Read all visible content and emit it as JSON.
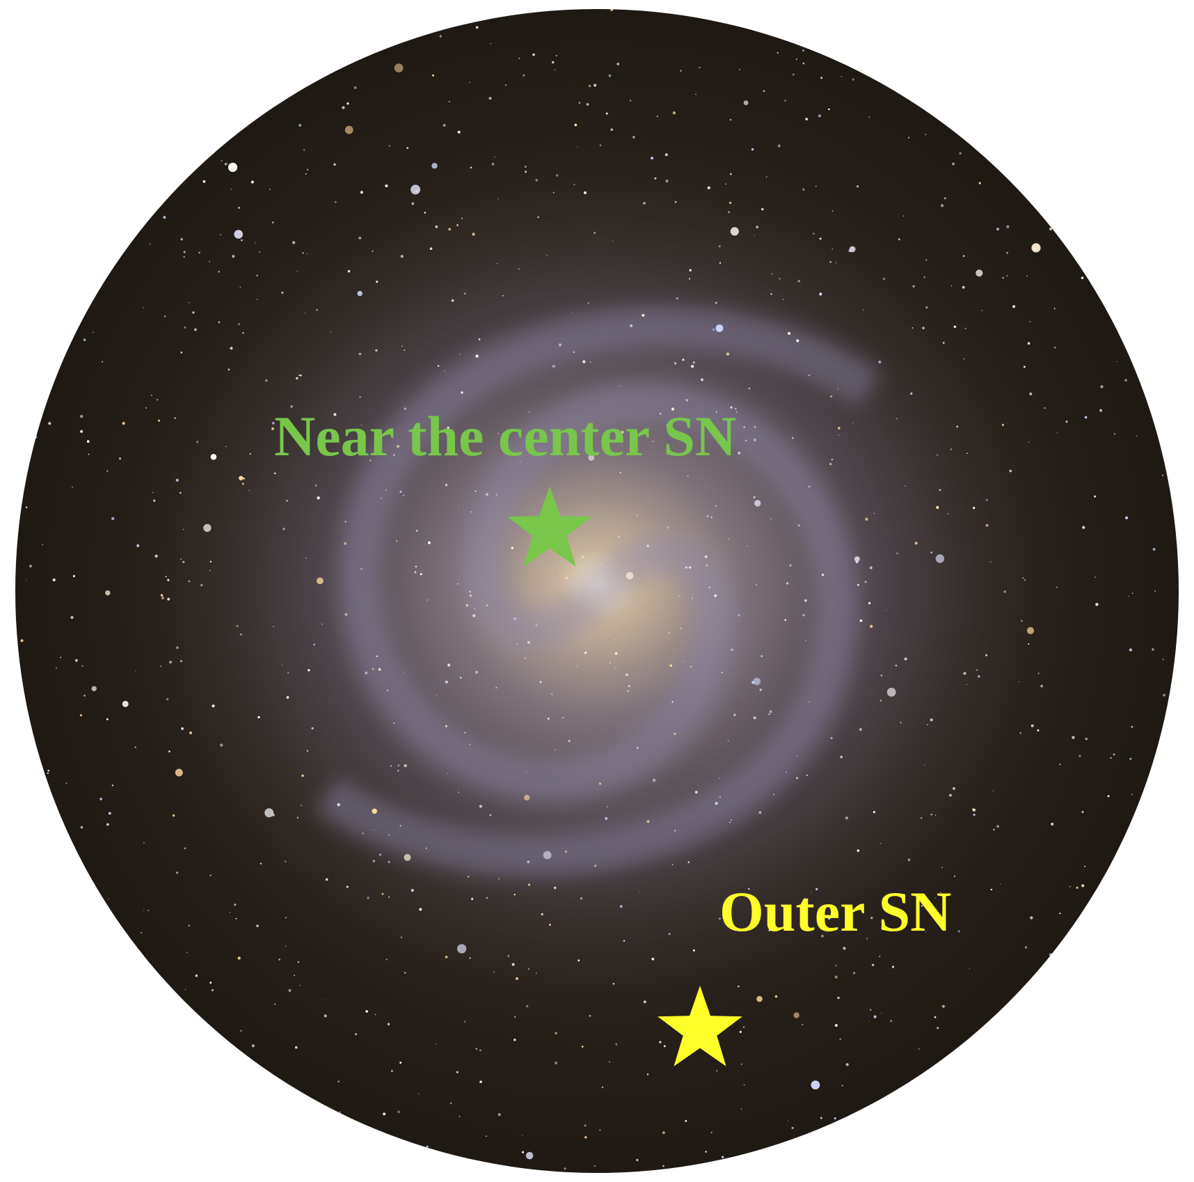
{
  "labels": [
    {
      "text": "Near the center SN"
    },
    {
      "text": "Outer SN"
    }
  ]
}
